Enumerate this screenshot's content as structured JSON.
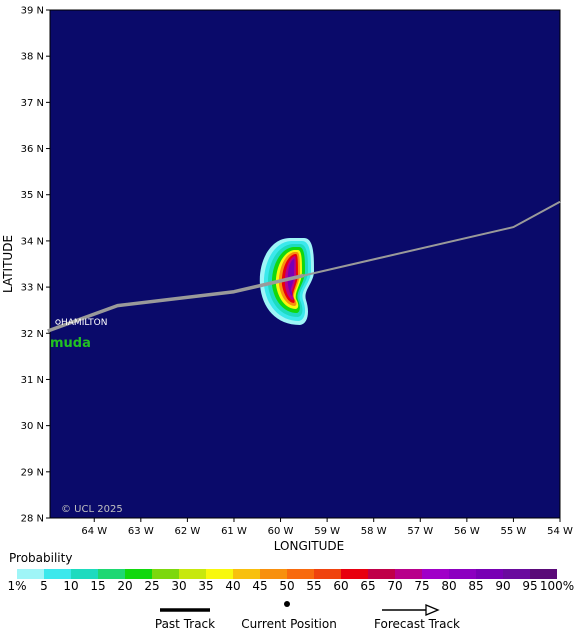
{
  "map": {
    "lat_ticks": [
      "39 N",
      "38 N",
      "37 N",
      "36 N",
      "35 N",
      "34 N",
      "33 N",
      "32 N",
      "31 N",
      "30 N",
      "29 N",
      "28 N"
    ],
    "lon_ticks": [
      "64 W",
      "63 W",
      "62 W",
      "61 W",
      "60 W",
      "59 W",
      "58 W",
      "57 W",
      "56 W",
      "55 W",
      "54 W"
    ],
    "xlabel": "LONGITUDE",
    "ylabel": "LATITUDE",
    "copyright": "© UCL 2025",
    "place_label": "HAMILTON",
    "island_label": "muda",
    "background_color": "#0a0a6a",
    "track_color": "#9a9a9a",
    "past_track": [
      [
        -65.0,
        32.05
      ],
      [
        -63.5,
        32.6
      ],
      [
        -61,
        32.9
      ],
      [
        -59.5,
        33.25
      ]
    ],
    "forecast_track": [
      [
        -59.5,
        33.25
      ],
      [
        -55,
        34.3
      ],
      [
        -54,
        34.85
      ]
    ]
  },
  "probability": {
    "title": "Probability",
    "labels": [
      "1%",
      "5",
      "10",
      "15",
      "20",
      "25",
      "30",
      "35",
      "40",
      "45",
      "50",
      "55",
      "60",
      "65",
      "70",
      "75",
      "80",
      "85",
      "90",
      "95",
      "100%"
    ],
    "colors": [
      "#9ff5f7",
      "#3be8ec",
      "#1edbbf",
      "#1ed873",
      "#12d80e",
      "#7dd80e",
      "#c7e80e",
      "#f8f80e",
      "#f8c00e",
      "#f8900e",
      "#f86a0e",
      "#f0430e",
      "#e8000e",
      "#c00048",
      "#b8008a",
      "#a000c8",
      "#8c00c0",
      "#7800b4",
      "#6a0a9e",
      "#5a0a78"
    ]
  },
  "legend": {
    "past_track_label": "Past Track",
    "current_position_label": "Current Position",
    "forecast_track_label": "Forecast Track"
  }
}
